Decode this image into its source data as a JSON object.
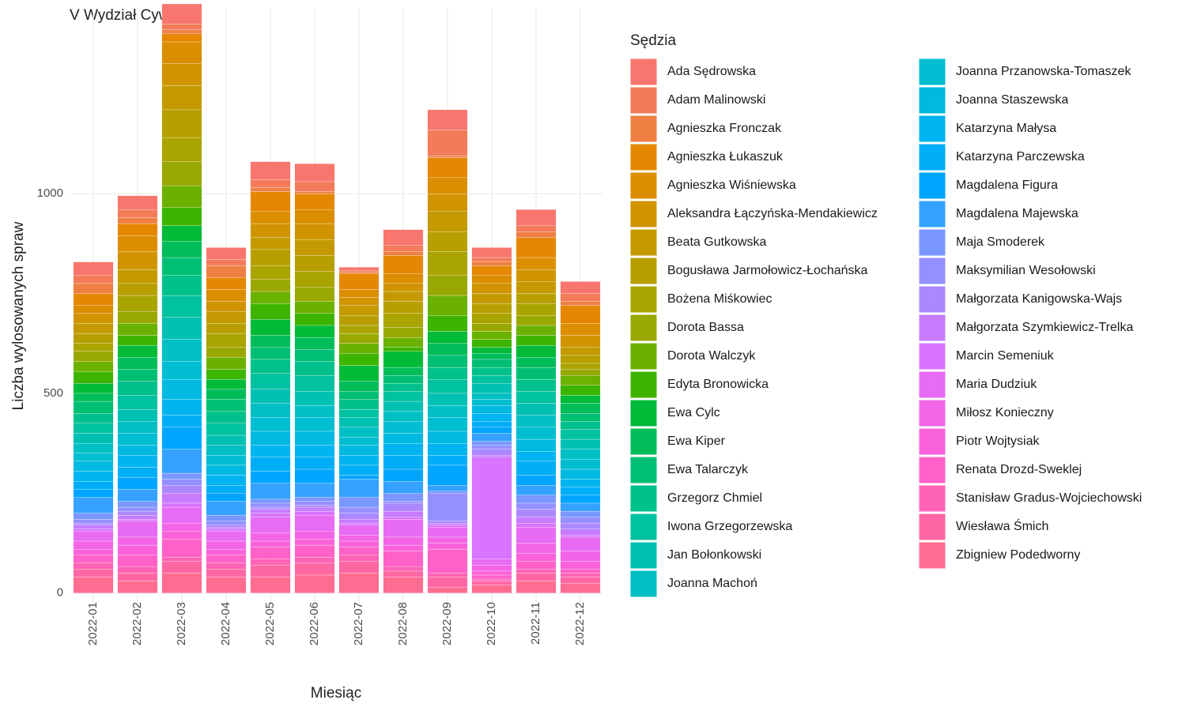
{
  "chart_data": {
    "type": "stacked_bar",
    "title": "V Wydział Cywilny",
    "x_label": "Miesiąc",
    "y_label": "Liczba wylosowanych spraw",
    "legend_title": "Sędzia",
    "categories": [
      "2022-01",
      "2022-02",
      "2022-03",
      "2022-04",
      "2022-05",
      "2022-06",
      "2022-07",
      "2022-08",
      "2022-09",
      "2022-10",
      "2022-11",
      "2022-12"
    ],
    "ylim": [
      -50,
      1465
    ],
    "yticks": [
      0,
      500,
      1000
    ],
    "grid": true,
    "legend_position": "right",
    "series": [
      {
        "name": "Ada Sędrowska",
        "color": "#F8766D",
        "values": [
          34,
          35,
          50,
          30,
          45,
          45,
          8,
          40,
          50,
          25,
          40,
          30
        ]
      },
      {
        "name": "Adam Malinowski",
        "color": "#F37B59",
        "values": [
          20,
          20,
          15,
          15,
          20,
          25,
          5,
          15,
          65,
          10,
          15,
          20
        ]
      },
      {
        "name": "Agnieszka Fronczak",
        "color": "#EE8043",
        "values": [
          25,
          15,
          10,
          30,
          10,
          5,
          3,
          10,
          5,
          10,
          15,
          10
        ]
      },
      {
        "name": "Agnieszka Łukaszuk",
        "color": "#E58700",
        "values": [
          30,
          30,
          20,
          30,
          50,
          40,
          40,
          45,
          50,
          25,
          50,
          45
        ]
      },
      {
        "name": "Agnieszka Wiśniewska",
        "color": "#DB8E00",
        "values": [
          20,
          40,
          55,
          30,
          30,
          35,
          20,
          25,
          40,
          20,
          30,
          30
        ]
      },
      {
        "name": "Aleksandra Łączyńska-Mendakiewicz",
        "color": "#D09400",
        "values": [
          25,
          45,
          55,
          25,
          35,
          40,
          20,
          20,
          45,
          25,
          30,
          30
        ]
      },
      {
        "name": "Beata Gutkowska",
        "color": "#C49A00",
        "values": [
          25,
          35,
          60,
          30,
          30,
          40,
          25,
          25,
          50,
          25,
          30,
          20
        ]
      },
      {
        "name": "Bogusława Jarmołowicz-Łochańska",
        "color": "#B79F00",
        "values": [
          25,
          30,
          70,
          25,
          40,
          40,
          25,
          30,
          50,
          25,
          25,
          20
        ]
      },
      {
        "name": "Bożena Miśkowiec",
        "color": "#A9A400",
        "values": [
          20,
          40,
          60,
          35,
          35,
          40,
          20,
          35,
          60,
          25,
          30,
          15
        ]
      },
      {
        "name": "Dorota Bassa",
        "color": "#99A800",
        "values": [
          25,
          30,
          60,
          25,
          30,
          35,
          25,
          25,
          50,
          20,
          25,
          15
        ]
      },
      {
        "name": "Dorota Walczyk",
        "color": "#6BB100",
        "values": [
          25,
          30,
          55,
          30,
          30,
          30,
          25,
          25,
          50,
          20,
          25,
          25
        ]
      },
      {
        "name": "Edyta Bronowicka",
        "color": "#3DB500",
        "values": [
          30,
          25,
          45,
          25,
          40,
          30,
          30,
          10,
          40,
          20,
          25,
          25
        ]
      },
      {
        "name": "Ewa Cylc",
        "color": "#00BA38",
        "values": [
          25,
          30,
          40,
          25,
          40,
          30,
          40,
          40,
          30,
          15,
          30,
          20
        ]
      },
      {
        "name": "Ewa Kiper",
        "color": "#00BC59",
        "values": [
          20,
          30,
          40,
          25,
          30,
          30,
          25,
          20,
          30,
          15,
          25,
          25
        ]
      },
      {
        "name": "Ewa Talarczyk",
        "color": "#00BF74",
        "values": [
          30,
          30,
          45,
          30,
          30,
          30,
          20,
          20,
          30,
          20,
          30,
          20
        ]
      },
      {
        "name": "Grzegorz Chmiel",
        "color": "#00C08B",
        "values": [
          25,
          35,
          50,
          30,
          35,
          35,
          25,
          20,
          30,
          20,
          30,
          20
        ]
      },
      {
        "name": "Iwona Grzegorzewska",
        "color": "#00C1A0",
        "values": [
          25,
          35,
          55,
          30,
          40,
          40,
          20,
          25,
          35,
          20,
          30,
          25
        ]
      },
      {
        "name": "Jan Bołonkowski",
        "color": "#00C0B4",
        "values": [
          25,
          30,
          55,
          25,
          35,
          35,
          25,
          25,
          30,
          25,
          30,
          25
        ]
      },
      {
        "name": "Joanna Machoń",
        "color": "#00BFC4",
        "values": [
          25,
          30,
          55,
          25,
          35,
          30,
          25,
          25,
          30,
          15,
          30,
          25
        ]
      },
      {
        "name": "Joanna Przanowska-Tomaszek",
        "color": "#00BDD2",
        "values": [
          20,
          30,
          45,
          25,
          35,
          35,
          20,
          30,
          35,
          15,
          30,
          25
        ]
      },
      {
        "name": "Joanna Staszewska",
        "color": "#00B9E0",
        "values": [
          25,
          25,
          50,
          25,
          35,
          35,
          25,
          25,
          30,
          20,
          30,
          25
        ]
      },
      {
        "name": "Katarzyna Małysa",
        "color": "#00B4EF",
        "values": [
          25,
          30,
          40,
          25,
          30,
          30,
          25,
          30,
          30,
          20,
          25,
          20
        ]
      },
      {
        "name": "Katarzyna Parczewska",
        "color": "#00AEF8",
        "values": [
          20,
          25,
          30,
          20,
          35,
          30,
          25,
          35,
          25,
          15,
          35,
          20
        ]
      },
      {
        "name": "Magdalena Figura",
        "color": "#00A5FF",
        "values": [
          20,
          30,
          55,
          20,
          30,
          35,
          10,
          30,
          50,
          15,
          25,
          20
        ]
      },
      {
        "name": "Magdalena Majewska",
        "color": "#35A2FF",
        "values": [
          40,
          30,
          60,
          35,
          40,
          35,
          45,
          30,
          15,
          20,
          25,
          20
        ]
      },
      {
        "name": "Maja Smoderek",
        "color": "#7997FF",
        "values": [
          15,
          15,
          15,
          15,
          10,
          10,
          25,
          20,
          5,
          10,
          20,
          15
        ]
      },
      {
        "name": "Maksymilian Wesołowski",
        "color": "#9590FF",
        "values": [
          10,
          10,
          15,
          10,
          10,
          10,
          15,
          5,
          70,
          10,
          15,
          15
        ]
      },
      {
        "name": "Małgorzata Kanigowska-Wajs",
        "color": "#AC88FF",
        "values": [
          5,
          10,
          20,
          5,
          5,
          5,
          15,
          20,
          5,
          15,
          20,
          15
        ]
      },
      {
        "name": "Małgorzata Szymkiewicz-Trelka",
        "color": "#C77CFF",
        "values": [
          10,
          10,
          25,
          5,
          10,
          10,
          10,
          15,
          5,
          5,
          15,
          15
        ]
      },
      {
        "name": "Marcin Semeniuk",
        "color": "#D874FD",
        "values": [
          5,
          5,
          10,
          5,
          10,
          10,
          5,
          5,
          5,
          255,
          10,
          5
        ]
      },
      {
        "name": "Maria Dudziuk",
        "color": "#E76BF3",
        "values": [
          25,
          40,
          40,
          25,
          40,
          40,
          25,
          45,
          25,
          15,
          40,
          35
        ]
      },
      {
        "name": "Miłosz Konieczny",
        "color": "#F265E7",
        "values": [
          20,
          20,
          20,
          20,
          20,
          20,
          15,
          20,
          15,
          15,
          25,
          25
        ]
      },
      {
        "name": "Piotr Wojtysiak",
        "color": "#FA62DB",
        "values": [
          15,
          25,
          20,
          15,
          15,
          15,
          15,
          15,
          15,
          10,
          20,
          20
        ]
      },
      {
        "name": "Renata Drozd-Sweklej",
        "color": "#FF61C9",
        "values": [
          20,
          30,
          45,
          20,
          30,
          30,
          20,
          40,
          60,
          10,
          20,
          10
        ]
      },
      {
        "name": "Stanisław Gradus-Wojciechowski",
        "color": "#FF63B6",
        "values": [
          15,
          15,
          10,
          15,
          15,
          15,
          15,
          10,
          10,
          5,
          10,
          10
        ]
      },
      {
        "name": "Wiesława Śmich",
        "color": "#FF67A4",
        "values": [
          20,
          20,
          30,
          20,
          30,
          30,
          30,
          15,
          25,
          10,
          20,
          15
        ]
      },
      {
        "name": "Zbigniew Podedworny",
        "color": "#FF6C91",
        "values": [
          40,
          30,
          50,
          40,
          40,
          45,
          50,
          40,
          15,
          20,
          30,
          25
        ]
      }
    ]
  }
}
